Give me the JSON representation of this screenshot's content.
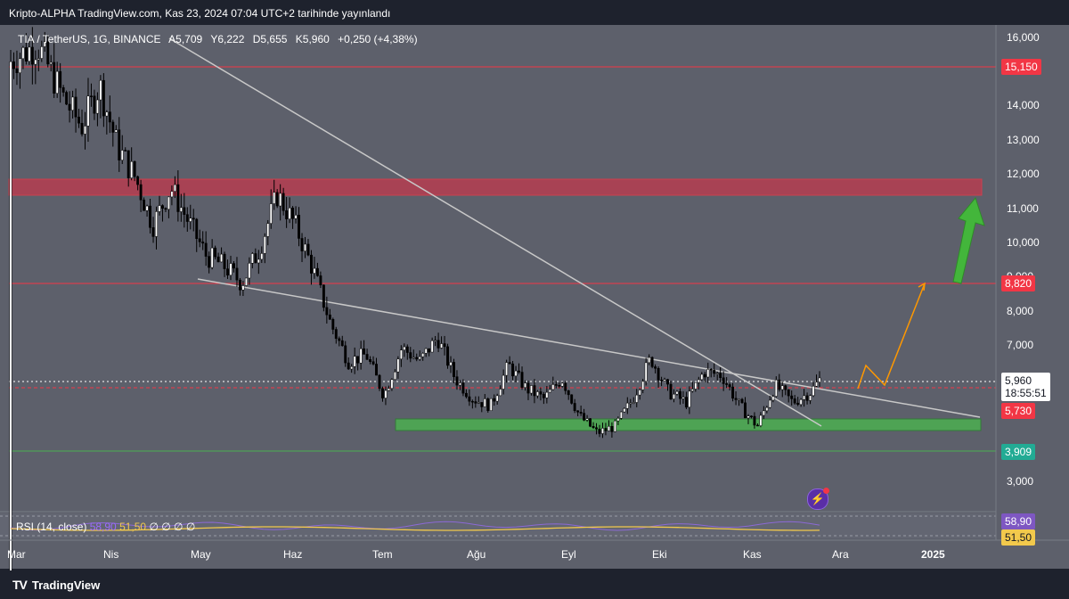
{
  "header": {
    "published": "Kripto-ALPHA TradingView.com, Kas 23, 2024 07:04 UTC+2 tarihinde yayınlandı"
  },
  "legend": {
    "symbol": "TIA / TetherUS, 1G, BINANCE",
    "open": "A5,709",
    "high": "Y6,222",
    "low": "D5,655",
    "close": "K5,960",
    "change": "+0,250 (+4,38%)"
  },
  "price_axis": {
    "ticks": [
      "16,000",
      "14,000",
      "13,000",
      "12,000",
      "11,000",
      "10,000",
      "9,000",
      "8,000",
      "7,000",
      "3,000"
    ],
    "tags": [
      {
        "name": "resistance-tag",
        "value": "15,150",
        "color": "#f23645"
      },
      {
        "name": "target-tag",
        "value": "8,820",
        "color": "#f23645"
      },
      {
        "name": "last-price-tag",
        "value": "5,960",
        "countdown": "18:55:51",
        "color": "#ffffff"
      },
      {
        "name": "support-tag",
        "value": "5,730",
        "color": "#f23645"
      },
      {
        "name": "low-support-tag",
        "value": "3,909",
        "color": "#22ab94"
      }
    ]
  },
  "time_axis": {
    "labels": [
      "Mar",
      "Nis",
      "May",
      "Haz",
      "Tem",
      "Ağu",
      "Eyl",
      "Eki",
      "Kas",
      "Ara",
      "2025"
    ]
  },
  "rsi": {
    "label": "RSI (14, close)",
    "value_rsi": "58,90",
    "value_ma": "51,50",
    "empty": "∅ ∅ ∅ ∅",
    "tag_rsi": "58,90",
    "tag_ma": "51,50"
  },
  "footer": {
    "brand": "TradingView"
  },
  "colors": {
    "background": "#5d606b",
    "resistance": "#f23645",
    "support": "#4caf50",
    "projection": "#ff9800",
    "arrow": "#43b63b",
    "trendline": "#c8c8c8",
    "candle": "#000000",
    "rsi": "#9c6bff",
    "rsi_ma": "#f2c94c"
  },
  "chart_data": {
    "type": "candlestick",
    "symbol": "TIA / TetherUS, 1G, BINANCE",
    "ylim": [
      3000,
      16000
    ],
    "x_labels": [
      "Mar",
      "Nis",
      "May",
      "Haz",
      "Tem",
      "Ağu",
      "Eyl",
      "Eki",
      "Kas",
      "Ara",
      "2025"
    ],
    "close_path": [
      {
        "t": 0,
        "p": 15.3
      },
      {
        "t": 0.03,
        "p": 15.8
      },
      {
        "t": 0.06,
        "p": 14.2
      },
      {
        "t": 0.08,
        "p": 13.4
      },
      {
        "t": 0.1,
        "p": 14.6
      },
      {
        "t": 0.12,
        "p": 12.8
      },
      {
        "t": 0.14,
        "p": 11.9
      },
      {
        "t": 0.16,
        "p": 10.5
      },
      {
        "t": 0.18,
        "p": 11.6
      },
      {
        "t": 0.2,
        "p": 10.6
      },
      {
        "t": 0.22,
        "p": 9.6
      },
      {
        "t": 0.24,
        "p": 9.3
      },
      {
        "t": 0.26,
        "p": 8.8
      },
      {
        "t": 0.28,
        "p": 9.8
      },
      {
        "t": 0.3,
        "p": 11.4
      },
      {
        "t": 0.32,
        "p": 10.5
      },
      {
        "t": 0.34,
        "p": 9.2
      },
      {
        "t": 0.36,
        "p": 7.6
      },
      {
        "t": 0.38,
        "p": 6.5
      },
      {
        "t": 0.4,
        "p": 6.7
      },
      {
        "t": 0.42,
        "p": 5.5
      },
      {
        "t": 0.44,
        "p": 6.9
      },
      {
        "t": 0.46,
        "p": 6.5
      },
      {
        "t": 0.48,
        "p": 7.2
      },
      {
        "t": 0.5,
        "p": 6.0
      },
      {
        "t": 0.52,
        "p": 5.4
      },
      {
        "t": 0.54,
        "p": 5.2
      },
      {
        "t": 0.56,
        "p": 6.4
      },
      {
        "t": 0.58,
        "p": 5.7
      },
      {
        "t": 0.6,
        "p": 5.4
      },
      {
        "t": 0.62,
        "p": 6.0
      },
      {
        "t": 0.64,
        "p": 4.9
      },
      {
        "t": 0.66,
        "p": 4.4
      },
      {
        "t": 0.68,
        "p": 4.6
      },
      {
        "t": 0.7,
        "p": 5.4
      },
      {
        "t": 0.72,
        "p": 6.6
      },
      {
        "t": 0.74,
        "p": 5.6
      },
      {
        "t": 0.76,
        "p": 5.3
      },
      {
        "t": 0.78,
        "p": 6.2
      },
      {
        "t": 0.8,
        "p": 6.1
      },
      {
        "t": 0.82,
        "p": 5.2
      },
      {
        "t": 0.84,
        "p": 4.6
      },
      {
        "t": 0.86,
        "p": 5.8
      },
      {
        "t": 0.88,
        "p": 5.3
      },
      {
        "t": 0.9,
        "p": 5.6
      },
      {
        "t": 0.91,
        "p": 5.96
      }
    ],
    "levels": [
      {
        "name": "resistance",
        "value": 15150
      },
      {
        "name": "target",
        "value": 8820
      },
      {
        "name": "support",
        "value": 5730
      },
      {
        "name": "low-support",
        "value": 3909
      }
    ],
    "zones": [
      {
        "name": "resistance-zone",
        "from": 11400,
        "to": 11900
      },
      {
        "name": "demand-zone",
        "from": 4900,
        "to": 5250
      }
    ],
    "last_price": 5960,
    "rsi": {
      "period": 14,
      "source": "close",
      "rsi": 58.9,
      "ma": 51.5
    }
  }
}
